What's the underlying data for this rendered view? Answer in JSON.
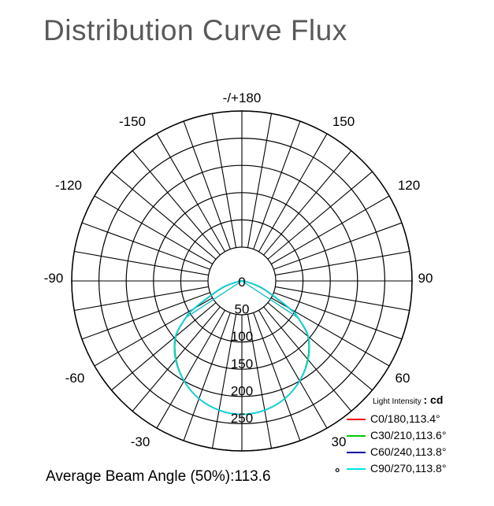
{
  "title": "Distribution Curve Flux",
  "beam": {
    "label": "Average Beam Angle",
    "value": "(50%):113.6",
    "degree_symbol": "°"
  },
  "legend": {
    "heading_small": "Light Intensity",
    "heading_unit": ": cd",
    "entries": [
      {
        "label": "C0/180,113.4°",
        "color": "#ff0000"
      },
      {
        "label": "C30/210,113.6°",
        "color": "#00cc00"
      },
      {
        "label": "C60/240,113.8°",
        "color": "#0000a0"
      },
      {
        "label": "C90/270,113.8°",
        "color": "#00e5e5"
      }
    ]
  },
  "chart_data": {
    "type": "polar",
    "radial_unit": "cd",
    "radial_ticks": [
      0,
      50,
      100,
      150,
      200,
      250
    ],
    "radial_max": 250,
    "angle_labels": [
      {
        "angle": 180,
        "text": "-/+180"
      },
      {
        "angle": 150,
        "text": "150"
      },
      {
        "angle": -150,
        "text": "-150"
      },
      {
        "angle": 120,
        "text": "120"
      },
      {
        "angle": -120,
        "text": "-120"
      },
      {
        "angle": 90,
        "text": "90"
      },
      {
        "angle": -90,
        "text": "-90"
      },
      {
        "angle": 60,
        "text": "60"
      },
      {
        "angle": -60,
        "text": "-60"
      },
      {
        "angle": 30,
        "text": "30"
      },
      {
        "angle": -30,
        "text": "-30"
      },
      {
        "angle": 0,
        "text": "0"
      }
    ],
    "series": [
      {
        "name": "C0/180,113.4°",
        "color": "#ff0000",
        "angles": [
          0,
          10,
          20,
          30,
          40,
          50,
          56.7,
          60,
          70,
          80,
          90
        ],
        "values": [
          245,
          241,
          230,
          212,
          188,
          158,
          122.5,
          100,
          40,
          8,
          0
        ]
      },
      {
        "name": "C30/210,113.6°",
        "color": "#00cc00",
        "angles": [
          0,
          10,
          20,
          30,
          40,
          50,
          56.8,
          60,
          70,
          80,
          90
        ],
        "values": [
          245,
          241,
          230,
          212,
          188,
          158,
          122.5,
          101,
          41,
          8,
          0
        ]
      },
      {
        "name": "C60/240,113.8°",
        "color": "#0000a0",
        "angles": [
          0,
          10,
          20,
          30,
          40,
          50,
          56.9,
          60,
          70,
          80,
          90
        ],
        "values": [
          245,
          241,
          230,
          212,
          189,
          159,
          122.5,
          102,
          42,
          9,
          0
        ]
      },
      {
        "name": "C90/270,113.8°",
        "color": "#00e5e5",
        "angles": [
          0,
          10,
          20,
          30,
          40,
          50,
          56.9,
          60,
          70,
          80,
          90
        ],
        "values": [
          245,
          241,
          230,
          212,
          189,
          159,
          122.5,
          102,
          42,
          9,
          0
        ]
      }
    ]
  }
}
